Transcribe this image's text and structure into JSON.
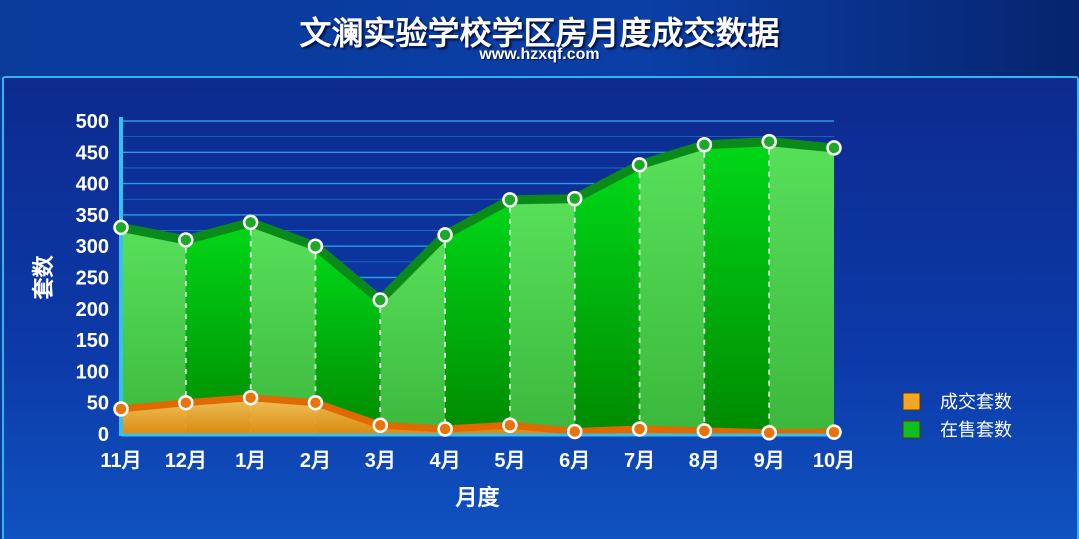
{
  "title": "文澜实验学校学区房月度成交数据",
  "subtitle": "www.hzxqf.com",
  "colors": {
    "background": "#0b3fa6",
    "panel_border": "#2fb6ee",
    "gridline": "#2aa8e8",
    "in_sale_fill_dark": "#00a800",
    "in_sale_fill_light": "#5fd85f",
    "in_sale_line": "#0a8a18",
    "deal_fill": "#f2a838",
    "deal_line": "#e06a00",
    "legend_deal": "#f5a623",
    "legend_in_sale": "#0fbf1f"
  },
  "chart_data": {
    "type": "area",
    "title": "文澜实验学校学区房月度成交数据",
    "subtitle": "www.hzxqf.com",
    "xlabel": "月度",
    "ylabel": "套数",
    "ylim": [
      0,
      500
    ],
    "yticks": [
      "0",
      "50",
      "100",
      "150",
      "200",
      "250",
      "300",
      "350",
      "400",
      "450",
      "500"
    ],
    "categories": [
      "11月",
      "12月",
      "1月",
      "2月",
      "3月",
      "4月",
      "5月",
      "6月",
      "7月",
      "8月",
      "9月",
      "10月"
    ],
    "grid": true,
    "legend_position": "right",
    "series": [
      {
        "name": "在售套数",
        "values": [
          330,
          310,
          338,
          300,
          214,
          318,
          374,
          376,
          430,
          462,
          467,
          457
        ]
      },
      {
        "name": "成交套数",
        "values": [
          40,
          50,
          58,
          50,
          14,
          8,
          14,
          4,
          8,
          5,
          2,
          3
        ]
      }
    ]
  }
}
